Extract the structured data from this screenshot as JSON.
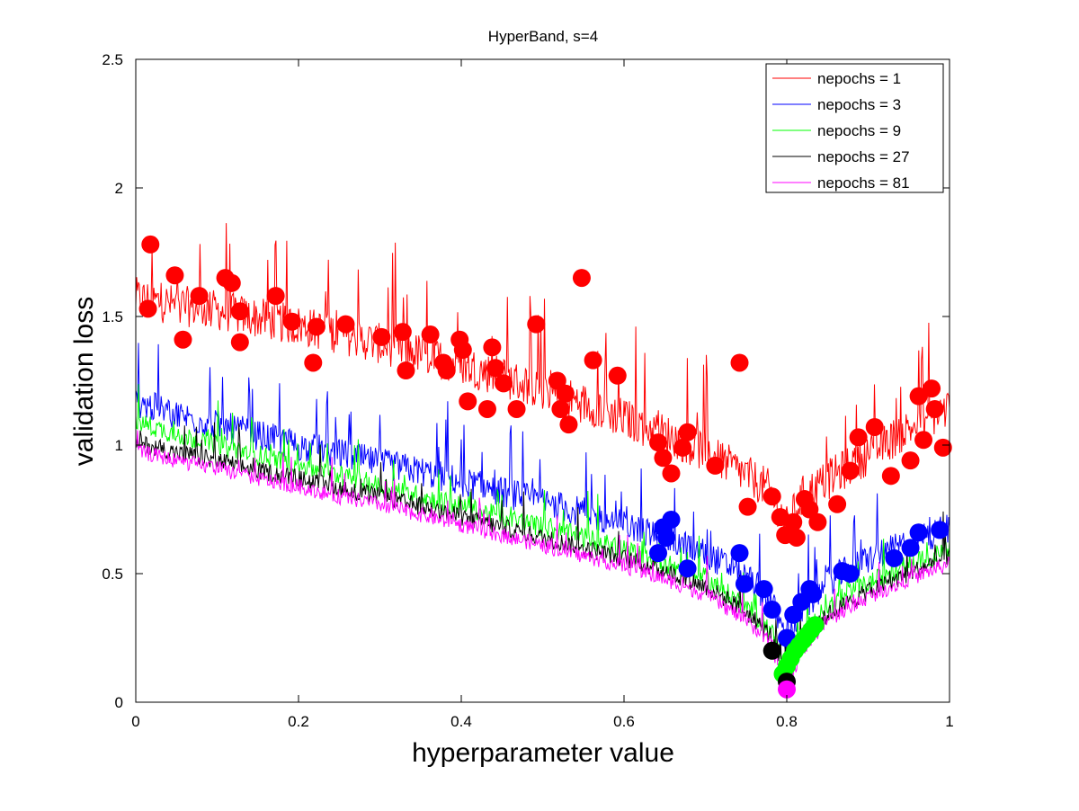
{
  "chart_data": {
    "type": "line",
    "title": "HyperBand, s=4",
    "xlabel": "hyperparameter value",
    "ylabel": "validation loss",
    "xlim": [
      0,
      1
    ],
    "ylim": [
      0,
      2.5
    ],
    "xticks": [
      0,
      0.2,
      0.4,
      0.6,
      0.8,
      1
    ],
    "xtick_labels": [
      "0",
      "0.2",
      "0.4",
      "0.6",
      "0.8",
      "1"
    ],
    "yticks": [
      0,
      0.5,
      1,
      1.5,
      2,
      2.5
    ],
    "ytick_labels": [
      "0",
      "0.5",
      "1",
      "1.5",
      "2",
      "2.5"
    ],
    "grid": false,
    "legend_position": "top-right",
    "series": [
      {
        "name": "nepochs = 1",
        "color": "#ff0000",
        "x": [
          0,
          0.05,
          0.1,
          0.15,
          0.2,
          0.25,
          0.3,
          0.35,
          0.4,
          0.45,
          0.5,
          0.55,
          0.6,
          0.65,
          0.7,
          0.75,
          0.78,
          0.8,
          0.82,
          0.85,
          0.9,
          0.95,
          1
        ],
        "y": [
          1.55,
          1.52,
          1.5,
          1.47,
          1.44,
          1.41,
          1.37,
          1.33,
          1.29,
          1.24,
          1.19,
          1.14,
          1.08,
          1.02,
          0.95,
          0.86,
          0.8,
          0.66,
          0.78,
          0.84,
          0.94,
          1.04,
          1.12
        ],
        "noise": 0.16,
        "markers": {
          "x": [
            0.015,
            0.018,
            0.048,
            0.058,
            0.078,
            0.11,
            0.118,
            0.128,
            0.128,
            0.172,
            0.192,
            0.218,
            0.222,
            0.258,
            0.302,
            0.328,
            0.332,
            0.362,
            0.378,
            0.382,
            0.398,
            0.402,
            0.408,
            0.432,
            0.438,
            0.442,
            0.452,
            0.468,
            0.492,
            0.518,
            0.522,
            0.528,
            0.532,
            0.548,
            0.562,
            0.592,
            0.642,
            0.648,
            0.658,
            0.672,
            0.678,
            0.712,
            0.742,
            0.752,
            0.782,
            0.792,
            0.798,
            0.808,
            0.812,
            0.822,
            0.828,
            0.838,
            0.862,
            0.878,
            0.888,
            0.908,
            0.928,
            0.952,
            0.962,
            0.968,
            0.978,
            0.982,
            0.992
          ],
          "y": [
            1.53,
            1.78,
            1.66,
            1.41,
            1.58,
            1.65,
            1.63,
            1.52,
            1.4,
            1.58,
            1.48,
            1.32,
            1.46,
            1.47,
            1.42,
            1.44,
            1.29,
            1.43,
            1.32,
            1.29,
            1.41,
            1.37,
            1.17,
            1.14,
            1.38,
            1.3,
            1.24,
            1.14,
            1.47,
            1.25,
            1.14,
            1.2,
            1.08,
            1.65,
            1.33,
            1.27,
            1.01,
            0.95,
            0.89,
            0.99,
            1.05,
            0.92,
            1.32,
            0.76,
            0.8,
            0.72,
            0.65,
            0.7,
            0.64,
            0.79,
            0.75,
            0.7,
            0.77,
            0.9,
            1.03,
            1.07,
            0.88,
            0.94,
            1.19,
            1.02,
            1.22,
            1.14,
            0.99
          ]
        }
      },
      {
        "name": "nepochs = 3",
        "color": "#0000ff",
        "x": [
          0,
          0.05,
          0.1,
          0.15,
          0.2,
          0.25,
          0.3,
          0.35,
          0.4,
          0.45,
          0.5,
          0.55,
          0.6,
          0.65,
          0.7,
          0.75,
          0.78,
          0.8,
          0.82,
          0.85,
          0.9,
          0.95,
          1
        ],
        "y": [
          1.15,
          1.1,
          1.06,
          1.02,
          0.98,
          0.95,
          0.91,
          0.88,
          0.84,
          0.8,
          0.76,
          0.72,
          0.67,
          0.62,
          0.56,
          0.47,
          0.38,
          0.22,
          0.34,
          0.45,
          0.54,
          0.6,
          0.66
        ],
        "noise": 0.12,
        "markers": {
          "x": [
            0.642,
            0.648,
            0.652,
            0.658,
            0.678,
            0.742,
            0.748,
            0.772,
            0.782,
            0.8,
            0.808,
            0.818,
            0.828,
            0.832,
            0.868,
            0.878,
            0.932,
            0.952,
            0.962,
            0.988
          ],
          "y": [
            0.58,
            0.68,
            0.64,
            0.71,
            0.52,
            0.58,
            0.46,
            0.44,
            0.36,
            0.25,
            0.34,
            0.39,
            0.44,
            0.42,
            0.51,
            0.5,
            0.56,
            0.6,
            0.66,
            0.67
          ]
        }
      },
      {
        "name": "nepochs = 9",
        "color": "#00ff00",
        "x": [
          0,
          0.05,
          0.1,
          0.15,
          0.2,
          0.25,
          0.3,
          0.35,
          0.4,
          0.45,
          0.5,
          0.55,
          0.6,
          0.65,
          0.7,
          0.75,
          0.78,
          0.8,
          0.82,
          0.85,
          0.9,
          0.95,
          1
        ],
        "y": [
          1.08,
          1.03,
          0.99,
          0.95,
          0.91,
          0.87,
          0.83,
          0.79,
          0.75,
          0.71,
          0.67,
          0.63,
          0.58,
          0.53,
          0.47,
          0.36,
          0.27,
          0.12,
          0.26,
          0.36,
          0.45,
          0.52,
          0.58
        ],
        "noise": 0.08,
        "markers": {
          "x": [
            0.795,
            0.8,
            0.805,
            0.81,
            0.815,
            0.82,
            0.825,
            0.83,
            0.835
          ],
          "y": [
            0.11,
            0.14,
            0.17,
            0.2,
            0.22,
            0.24,
            0.26,
            0.28,
            0.3
          ]
        }
      },
      {
        "name": "nepochs = 27",
        "color": "#000000",
        "x": [
          0,
          0.05,
          0.1,
          0.15,
          0.2,
          0.25,
          0.3,
          0.35,
          0.4,
          0.45,
          0.5,
          0.55,
          0.6,
          0.65,
          0.7,
          0.75,
          0.78,
          0.8,
          0.82,
          0.85,
          0.9,
          0.95,
          1
        ],
        "y": [
          1.0,
          0.96,
          0.93,
          0.89,
          0.86,
          0.82,
          0.79,
          0.75,
          0.71,
          0.67,
          0.63,
          0.59,
          0.55,
          0.5,
          0.44,
          0.34,
          0.25,
          0.08,
          0.22,
          0.33,
          0.42,
          0.49,
          0.56
        ],
        "noise": 0.07,
        "markers": {
          "x": [
            0.782,
            0.8
          ],
          "y": [
            0.2,
            0.08
          ]
        }
      },
      {
        "name": "nepochs = 81",
        "color": "#ff00ff",
        "x": [
          0,
          0.05,
          0.1,
          0.15,
          0.2,
          0.25,
          0.3,
          0.35,
          0.4,
          0.45,
          0.5,
          0.55,
          0.6,
          0.65,
          0.7,
          0.75,
          0.78,
          0.8,
          0.82,
          0.85,
          0.9,
          0.95,
          1
        ],
        "y": [
          0.97,
          0.93,
          0.9,
          0.86,
          0.83,
          0.79,
          0.76,
          0.72,
          0.68,
          0.64,
          0.6,
          0.56,
          0.52,
          0.47,
          0.41,
          0.31,
          0.22,
          0.05,
          0.2,
          0.31,
          0.4,
          0.47,
          0.53
        ],
        "noise": 0.06,
        "markers": {
          "x": [
            0.8
          ],
          "y": [
            0.05
          ]
        }
      }
    ]
  }
}
